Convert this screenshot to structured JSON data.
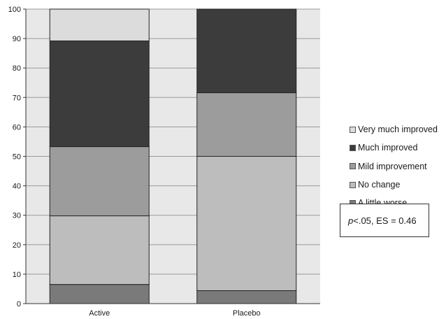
{
  "chart_data": {
    "type": "bar",
    "stacked": true,
    "categories": [
      "Active",
      "Placebo"
    ],
    "series": [
      {
        "name": "A little worse",
        "values": [
          6.5,
          4.4
        ],
        "color": "#7a7a7a"
      },
      {
        "name": "No change",
        "values": [
          23.3,
          45.6
        ],
        "color": "#bdbdbd"
      },
      {
        "name": "Mild improvement",
        "values": [
          23.5,
          21.6
        ],
        "color": "#9c9c9c"
      },
      {
        "name": "Much improved",
        "values": [
          35.9,
          28.4
        ],
        "color": "#3c3c3c"
      },
      {
        "name": "Very much improved",
        "values": [
          10.8,
          0
        ],
        "color": "#dcdcdc"
      }
    ],
    "legend_order": [
      "Very much improved",
      "Much improved",
      "Mild improvement",
      "No change",
      "A little worse"
    ],
    "legend_position": "right",
    "ylim": [
      0,
      100
    ],
    "yticks": [
      0,
      10,
      20,
      30,
      40,
      50,
      60,
      70,
      80,
      90,
      100
    ],
    "grid": true,
    "annotation": {
      "p": "p",
      "rest": "<.05, ES = 0.46"
    }
  },
  "colors": {
    "plot_background": "#e8e8e8",
    "gridline": "#9a9a9a"
  }
}
